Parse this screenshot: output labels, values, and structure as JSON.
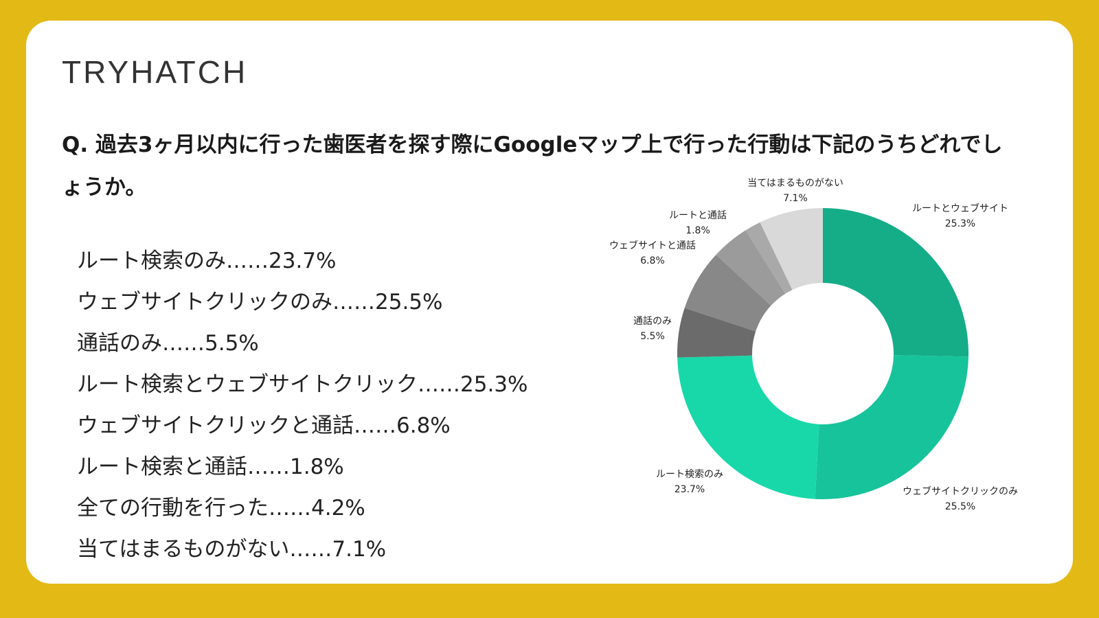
{
  "brand": {
    "logo_text_a": "TRY",
    "logo_text_b": "HATCH"
  },
  "question": "Q. 過去3ヶ月以内に行った歯医者を探す際にGoogleマップ上で行った行動は下記のうちどれでしょうか。",
  "list_items": [
    "ルート検索のみ……23.7%",
    "ウェブサイトクリックのみ……25.5%",
    "通話のみ……5.5%",
    "ルート検索とウェブサイトクリック……25.3%",
    "ウェブサイトクリックと通話……6.8%",
    "ルート検索と通話……1.8%",
    "全ての行動を行った……4.2%",
    "当てはまるものがない……7.1%"
  ],
  "chart_data": {
    "type": "pie",
    "donut": true,
    "slices": [
      {
        "label": "ルートとウェブサイト",
        "value": 25.3,
        "display": "25.3%",
        "color": "#14AD88"
      },
      {
        "label": "ウェブサイトクリックのみ",
        "value": 25.5,
        "display": "25.5%",
        "color": "#17C39A"
      },
      {
        "label": "ルート検索のみ",
        "value": 23.7,
        "display": "23.7%",
        "color": "#18D8A9"
      },
      {
        "label": "通話のみ",
        "value": 5.5,
        "display": "5.5%",
        "color": "#6B6B6B"
      },
      {
        "label": "ウェブサイトと通話",
        "value": 6.8,
        "display": "6.8%",
        "color": "#888888"
      },
      {
        "label": "",
        "value": 4.2,
        "display": "",
        "color": "#9B9B9B"
      },
      {
        "label": "ルートと通話",
        "value": 1.8,
        "display": "1.8%",
        "color": "#A9A9A9"
      },
      {
        "label": "当てはまるものがない",
        "value": 7.1,
        "display": "7.1%",
        "color": "#D9D9D9"
      }
    ],
    "start": "top",
    "direction": "clockwise",
    "legend": "none"
  }
}
